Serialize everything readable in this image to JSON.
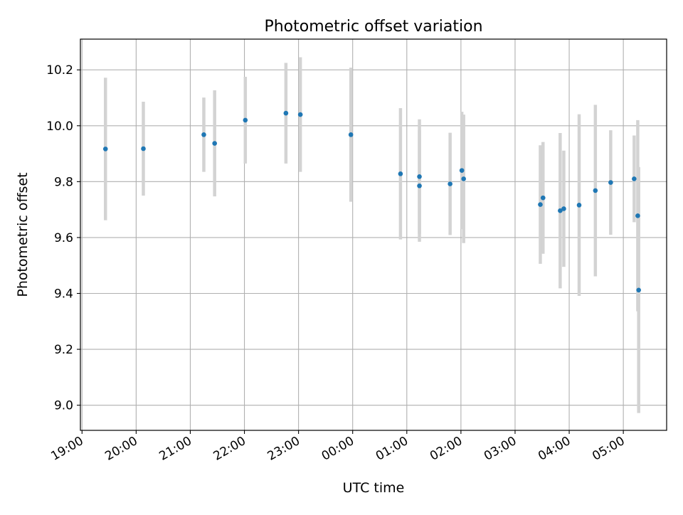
{
  "chart_data": {
    "type": "scatter",
    "title": "Photometric offset variation",
    "xlabel": "UTC time",
    "ylabel": "Photometric offset",
    "x_tick_labels": [
      "19:00",
      "20:00",
      "21:00",
      "22:00",
      "23:00",
      "00:00",
      "01:00",
      "02:00",
      "03:00",
      "04:00",
      "05:00"
    ],
    "x_tick_hours": [
      0,
      1,
      2,
      3,
      4,
      5,
      6,
      7,
      8,
      9,
      10
    ],
    "xlim_hours": [
      -0.03,
      10.8
    ],
    "y_ticks": [
      9.0,
      9.2,
      9.4,
      9.6,
      9.8,
      10.0,
      10.2
    ],
    "y_tick_labels": [
      "9.0",
      "9.2",
      "9.4",
      "9.6",
      "9.8",
      "10.0",
      "10.2"
    ],
    "ylim": [
      8.91,
      10.31
    ],
    "grid": true,
    "point_color": "#1f77b4",
    "errorbar_color": "#d3d3d3",
    "points": [
      {
        "time": "19:26",
        "y": 9.917,
        "err": 0.255
      },
      {
        "time": "20:08",
        "y": 9.918,
        "err": 0.168
      },
      {
        "time": "21:15",
        "y": 9.968,
        "err": 0.133
      },
      {
        "time": "21:27",
        "y": 9.937,
        "err": 0.19
      },
      {
        "time": "22:01",
        "y": 10.02,
        "err": 0.155
      },
      {
        "time": "22:46",
        "y": 10.045,
        "err": 0.18
      },
      {
        "time": "23:02",
        "y": 10.04,
        "err": 0.205
      },
      {
        "time": "23:58",
        "y": 9.968,
        "err": 0.24
      },
      {
        "time": "00:53",
        "y": 9.828,
        "err": 0.235
      },
      {
        "time": "01:14",
        "y": 9.818,
        "err": 0.205
      },
      {
        "time": "01:14",
        "y": 9.785,
        "err": 0.2
      },
      {
        "time": "01:48",
        "y": 9.792,
        "err": 0.183
      },
      {
        "time": "02:01",
        "y": 9.84,
        "err": 0.21
      },
      {
        "time": "02:03",
        "y": 9.81,
        "err": 0.23
      },
      {
        "time": "03:28",
        "y": 9.718,
        "err": 0.212
      },
      {
        "time": "03:31",
        "y": 9.742,
        "err": 0.2
      },
      {
        "time": "03:50",
        "y": 9.696,
        "err": 0.278
      },
      {
        "time": "03:54",
        "y": 9.703,
        "err": 0.208
      },
      {
        "time": "04:11",
        "y": 9.716,
        "err": 0.325
      },
      {
        "time": "04:29",
        "y": 9.768,
        "err": 0.307
      },
      {
        "time": "04:46",
        "y": 9.797,
        "err": 0.187
      },
      {
        "time": "05:12",
        "y": 9.81,
        "err": 0.155
      },
      {
        "time": "05:16",
        "y": 9.678,
        "err": 0.342
      },
      {
        "time": "05:17",
        "y": 9.412,
        "err": 0.44
      }
    ]
  }
}
